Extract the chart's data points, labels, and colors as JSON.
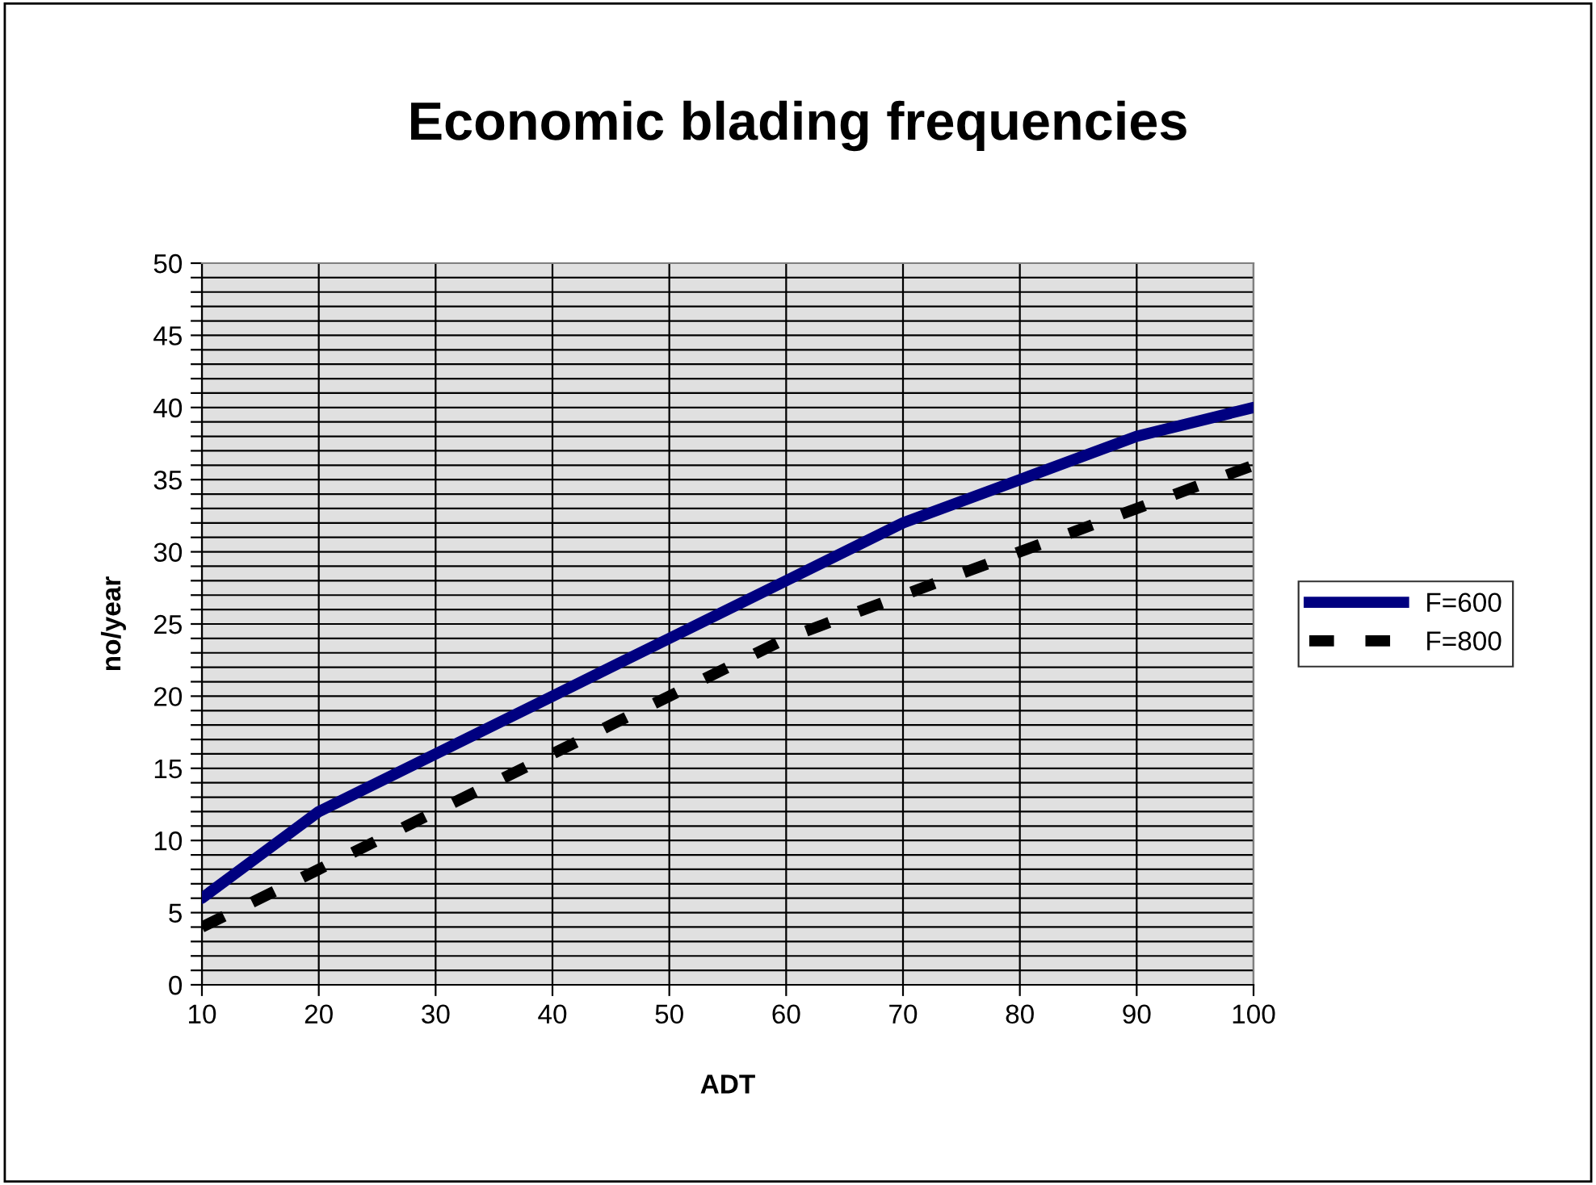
{
  "chart_data": {
    "type": "line",
    "title": "Economic blading frequencies",
    "xlabel": "ADT",
    "ylabel": "no/year",
    "x": [
      10,
      20,
      30,
      40,
      50,
      60,
      70,
      80,
      90,
      100
    ],
    "series": [
      {
        "name": "F=600",
        "color": "#000080",
        "line_style": "solid",
        "values": [
          6,
          12,
          16,
          20,
          24,
          28,
          32,
          35,
          38,
          40
        ]
      },
      {
        "name": "F=800",
        "color": "#000000",
        "line_style": "dashed",
        "values": [
          4,
          8,
          12,
          16,
          20,
          24,
          27,
          30,
          33,
          36
        ]
      }
    ],
    "xlim": [
      10,
      100
    ],
    "xticks": [
      10,
      20,
      30,
      40,
      50,
      60,
      70,
      80,
      90,
      100
    ],
    "ylim": [
      0,
      50
    ],
    "yticks": [
      0,
      {
        "value": 1,
        "label": null
      },
      {
        "value": 2,
        "label": null
      },
      {
        "value": 3,
        "label": null
      },
      {
        "value": 4,
        "label": null
      },
      5,
      {
        "value": 6,
        "label": null
      },
      {
        "value": 7,
        "label": null
      },
      {
        "value": 8,
        "label": null
      },
      {
        "value": 9,
        "label": null
      },
      10,
      {
        "value": 11,
        "label": null
      },
      {
        "value": 12,
        "label": null
      },
      {
        "value": 13,
        "label": null
      },
      {
        "value": 14,
        "label": null
      },
      15,
      {
        "value": 16,
        "label": null
      },
      {
        "value": 17,
        "label": null
      },
      {
        "value": 18,
        "label": null
      },
      {
        "value": 19,
        "label": null
      },
      20,
      {
        "value": 21,
        "label": null
      },
      {
        "value": 22,
        "label": null
      },
      {
        "value": 23,
        "label": null
      },
      {
        "value": 24,
        "label": null
      },
      25,
      {
        "value": 26,
        "label": null
      },
      {
        "value": 27,
        "label": null
      },
      {
        "value": 28,
        "label": null
      },
      {
        "value": 29,
        "label": null
      },
      30,
      {
        "value": 31,
        "label": null
      },
      {
        "value": 32,
        "label": null
      },
      {
        "value": 33,
        "label": null
      },
      {
        "value": 34,
        "label": null
      },
      35,
      {
        "value": 36,
        "label": null
      },
      {
        "value": 37,
        "label": null
      },
      {
        "value": 38,
        "label": null
      },
      {
        "value": 39,
        "label": null
      },
      40,
      {
        "value": 41,
        "label": null
      },
      {
        "value": 42,
        "label": null
      },
      {
        "value": 43,
        "label": null
      },
      {
        "value": 44,
        "label": null
      },
      45,
      {
        "value": 46,
        "label": null
      },
      {
        "value": 47,
        "label": null
      },
      {
        "value": 48,
        "label": null
      },
      {
        "value": 49,
        "label": null
      },
      50
    ],
    "grid": true,
    "legend": "right",
    "marker": "none"
  }
}
